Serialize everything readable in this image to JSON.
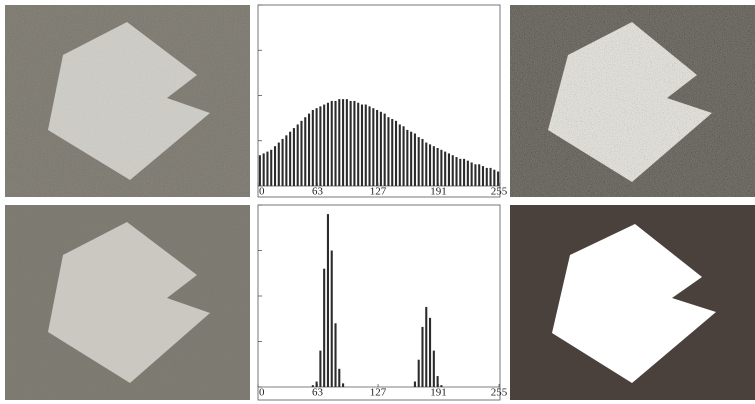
{
  "chart_data": [
    {
      "type": "histogram",
      "color": "#2b2b2b",
      "bins": [
        0,
        4,
        8,
        12,
        16,
        20,
        24,
        28,
        32,
        36,
        40,
        44,
        48,
        52,
        56,
        60,
        64,
        68,
        72,
        76,
        80,
        84,
        88,
        92,
        96,
        100,
        104,
        108,
        112,
        116,
        120,
        124,
        128,
        132,
        136,
        140,
        144,
        148,
        152,
        156,
        160,
        164,
        168,
        172,
        176,
        180,
        184,
        188,
        192,
        196,
        200,
        204,
        208,
        212,
        216,
        220,
        224,
        228,
        232,
        236,
        240,
        244,
        248,
        252,
        256
      ],
      "values": [
        17,
        18,
        19,
        20,
        22,
        24,
        26,
        28,
        30,
        32,
        34,
        36,
        38,
        40,
        42,
        43,
        44,
        45,
        46,
        47,
        47,
        48,
        48,
        48,
        47,
        47,
        46,
        45,
        45,
        44,
        43,
        42,
        41,
        40,
        38,
        37,
        36,
        34,
        33,
        31,
        30,
        29,
        27,
        26,
        24,
        23,
        22,
        21,
        20,
        19,
        18,
        17,
        16,
        15,
        15,
        14,
        13,
        12,
        12,
        11,
        10,
        10,
        9,
        8
      ],
      "xlim": [
        0,
        256
      ],
      "xticks": [
        0,
        63,
        127,
        191,
        255
      ],
      "ylim": [
        0,
        100
      ],
      "yticks": [
        0,
        25,
        50,
        75,
        100
      ],
      "grid": false
    },
    {
      "type": "histogram",
      "color": "#2b2b2b",
      "bins": [
        0,
        4,
        8,
        12,
        16,
        20,
        24,
        28,
        32,
        36,
        40,
        44,
        48,
        52,
        56,
        60,
        64,
        68,
        72,
        76,
        80,
        84,
        88,
        92,
        96,
        100,
        104,
        108,
        112,
        116,
        120,
        124,
        128,
        132,
        136,
        140,
        144,
        148,
        152,
        156,
        160,
        164,
        168,
        172,
        176,
        180,
        184,
        188,
        192,
        196,
        200,
        204,
        208,
        212,
        216,
        220,
        224,
        228,
        232,
        236,
        240,
        244,
        248,
        252,
        256
      ],
      "values": [
        0,
        0,
        0,
        0,
        0,
        0,
        0,
        0,
        0,
        0,
        0,
        0,
        0,
        0,
        1,
        3,
        20,
        65,
        95,
        75,
        35,
        10,
        2,
        0,
        0,
        0,
        0,
        0,
        0,
        0,
        0,
        0,
        0,
        0,
        0,
        0,
        0,
        0,
        0,
        0,
        0,
        3,
        15,
        33,
        44,
        38,
        20,
        6,
        1,
        0,
        0,
        0,
        0,
        0,
        0,
        0,
        0,
        0,
        0,
        0,
        0,
        0,
        0,
        0
      ],
      "xlim": [
        0,
        256
      ],
      "xticks": [
        0,
        63,
        127,
        191,
        255
      ],
      "ylim": [
        0,
        100
      ],
      "yticks": [
        0,
        25,
        50,
        75,
        100
      ],
      "grid": false
    }
  ]
}
